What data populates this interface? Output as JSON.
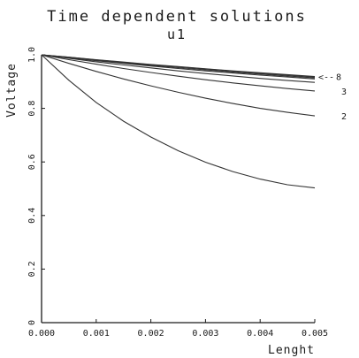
{
  "chart_data": {
    "type": "line",
    "title": "Time dependent solutions",
    "subtitle": "u1",
    "xlabel": "Lenght",
    "ylabel": "Voltage",
    "xlim": [
      0,
      0.005
    ],
    "ylim": [
      0,
      1
    ],
    "x_ticks": [
      {
        "value": 0,
        "label": "0.000"
      },
      {
        "value": 0.001,
        "label": "0.001"
      },
      {
        "value": 0.002,
        "label": "0.002"
      },
      {
        "value": 0.003,
        "label": "0.003"
      },
      {
        "value": 0.004,
        "label": "0.004"
      },
      {
        "value": 0.005,
        "label": "0.005"
      }
    ],
    "y_ticks": [
      {
        "value": 0,
        "label": "0"
      },
      {
        "value": 0.2,
        "label": "0.2"
      },
      {
        "value": 0.4,
        "label": "0.4"
      },
      {
        "value": 0.6,
        "label": "0.6"
      },
      {
        "value": 0.8,
        "label": "0.8"
      },
      {
        "value": 1.0,
        "label": "1.0"
      }
    ],
    "grid": false,
    "x": [
      0,
      0.0005,
      0.001,
      0.0015,
      0.002,
      0.0025,
      0.003,
      0.0035,
      0.004,
      0.0045,
      0.005
    ],
    "series": [
      {
        "name": "",
        "values": [
          1.0,
          0.905,
          0.822,
          0.752,
          0.693,
          0.642,
          0.599,
          0.564,
          0.536,
          0.515,
          0.503
        ]
      },
      {
        "name": "2",
        "values": [
          1.0,
          0.968,
          0.938,
          0.91,
          0.884,
          0.86,
          0.838,
          0.818,
          0.8,
          0.785,
          0.772
        ]
      },
      {
        "name": "3",
        "values": [
          1.0,
          0.982,
          0.965,
          0.949,
          0.934,
          0.92,
          0.907,
          0.895,
          0.884,
          0.874,
          0.865
        ]
      },
      {
        "name": "",
        "values": [
          1.0,
          0.987,
          0.974,
          0.962,
          0.951,
          0.94,
          0.93,
          0.921,
          0.912,
          0.904,
          0.897
        ]
      },
      {
        "name": "",
        "values": [
          1.0,
          0.989,
          0.978,
          0.968,
          0.958,
          0.949,
          0.94,
          0.932,
          0.924,
          0.917,
          0.91
        ]
      },
      {
        "name": "",
        "values": [
          1.0,
          0.99,
          0.98,
          0.97,
          0.961,
          0.952,
          0.944,
          0.936,
          0.928,
          0.921,
          0.914
        ]
      },
      {
        "name": "",
        "values": [
          1.0,
          0.991,
          0.981,
          0.972,
          0.963,
          0.955,
          0.947,
          0.939,
          0.931,
          0.924,
          0.917
        ]
      },
      {
        "name": "8",
        "values": [
          1.0,
          0.991,
          0.982,
          0.973,
          0.964,
          0.956,
          0.948,
          0.94,
          0.933,
          0.926,
          0.919
        ]
      }
    ],
    "legend_marker": "<--"
  }
}
